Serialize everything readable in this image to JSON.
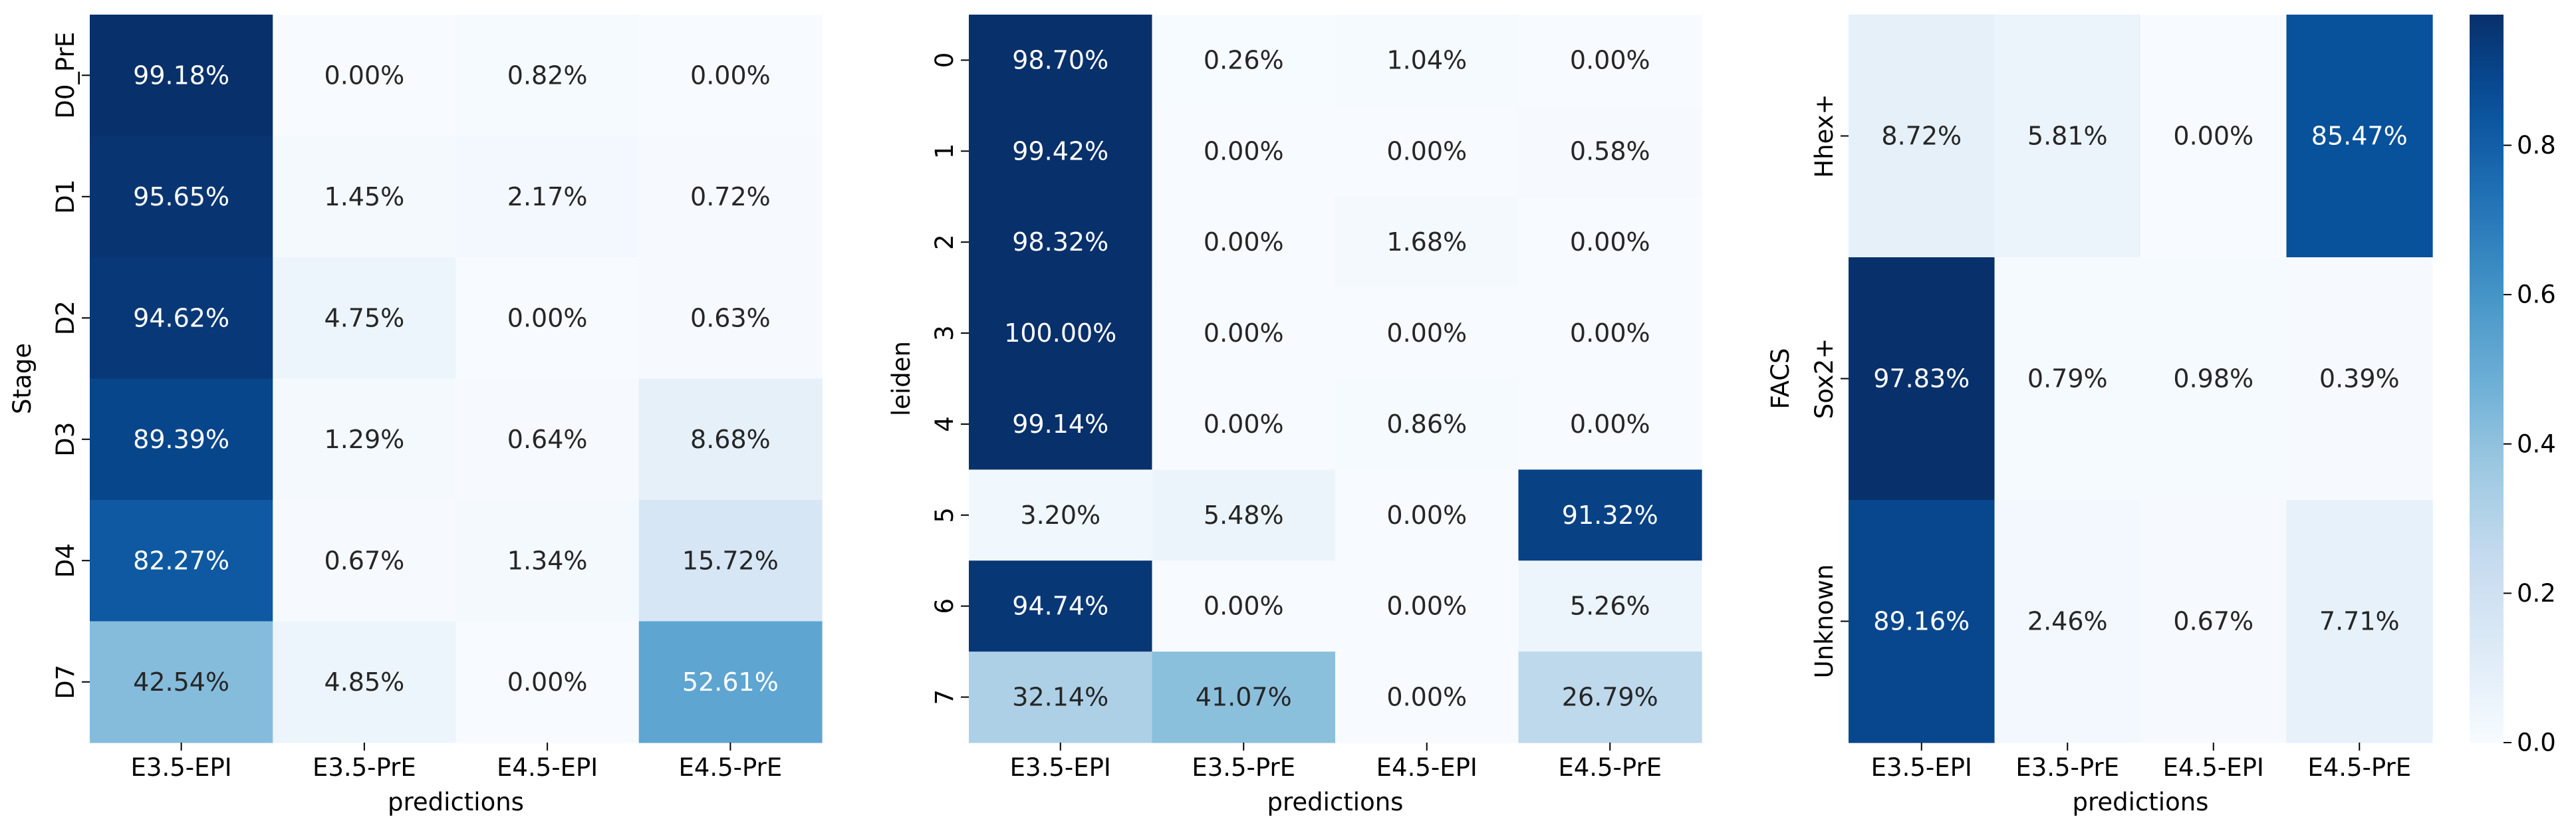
{
  "colorbar": {
    "ticks": [
      "0.0",
      "0.2",
      "0.4",
      "0.6",
      "0.8"
    ],
    "tick_values": [
      0,
      0.2,
      0.4,
      0.6,
      0.8
    ],
    "range": [
      0,
      0.975
    ]
  },
  "chart_data": [
    {
      "type": "heatmap",
      "title": "",
      "xlabel": "predictions",
      "ylabel": "Stage",
      "x_categories": [
        "E3.5-EPI",
        "E3.5-PrE",
        "E4.5-EPI",
        "E4.5-PrE"
      ],
      "y_categories": [
        "D0_PrE",
        "D1",
        "D2",
        "D3",
        "D4",
        "D7"
      ],
      "values": [
        [
          0.9918,
          0.0,
          0.0082,
          0.0
        ],
        [
          0.9565,
          0.0145,
          0.0217,
          0.0072
        ],
        [
          0.9462,
          0.0475,
          0.0,
          0.0063
        ],
        [
          0.8939,
          0.0129,
          0.0064,
          0.0868
        ],
        [
          0.8227,
          0.0067,
          0.0134,
          0.1572
        ],
        [
          0.4254,
          0.0485,
          0.0,
          0.5261
        ]
      ],
      "labels": [
        [
          "99.18%",
          "0.00%",
          "0.82%",
          "0.00%"
        ],
        [
          "95.65%",
          "1.45%",
          "2.17%",
          "0.72%"
        ],
        [
          "94.62%",
          "4.75%",
          "0.00%",
          "0.63%"
        ],
        [
          "89.39%",
          "1.29%",
          "0.64%",
          "8.68%"
        ],
        [
          "82.27%",
          "0.67%",
          "1.34%",
          "15.72%"
        ],
        [
          "42.54%",
          "4.85%",
          "0.00%",
          "52.61%"
        ]
      ],
      "colormap": "Blues"
    },
    {
      "type": "heatmap",
      "title": "",
      "xlabel": "predictions",
      "ylabel": "leiden",
      "x_categories": [
        "E3.5-EPI",
        "E3.5-PrE",
        "E4.5-EPI",
        "E4.5-PrE"
      ],
      "y_categories": [
        "0",
        "1",
        "2",
        "3",
        "4",
        "5",
        "6",
        "7"
      ],
      "values": [
        [
          0.987,
          0.0026,
          0.0104,
          0.0
        ],
        [
          0.9942,
          0.0,
          0.0,
          0.0058
        ],
        [
          0.9832,
          0.0,
          0.0168,
          0.0
        ],
        [
          1.0,
          0.0,
          0.0,
          0.0
        ],
        [
          0.9914,
          0.0,
          0.0086,
          0.0
        ],
        [
          0.032,
          0.0548,
          0.0,
          0.9132
        ],
        [
          0.9474,
          0.0,
          0.0,
          0.0526
        ],
        [
          0.3214,
          0.4107,
          0.0,
          0.2679
        ]
      ],
      "labels": [
        [
          "98.70%",
          "0.26%",
          "1.04%",
          "0.00%"
        ],
        [
          "99.42%",
          "0.00%",
          "0.00%",
          "0.58%"
        ],
        [
          "98.32%",
          "0.00%",
          "1.68%",
          "0.00%"
        ],
        [
          "100.00%",
          "0.00%",
          "0.00%",
          "0.00%"
        ],
        [
          "99.14%",
          "0.00%",
          "0.86%",
          "0.00%"
        ],
        [
          "3.20%",
          "5.48%",
          "0.00%",
          "91.32%"
        ],
        [
          "94.74%",
          "0.00%",
          "0.00%",
          "5.26%"
        ],
        [
          "32.14%",
          "41.07%",
          "0.00%",
          "26.79%"
        ]
      ],
      "colormap": "Blues"
    },
    {
      "type": "heatmap",
      "title": "",
      "xlabel": "predictions",
      "ylabel": "FACS",
      "x_categories": [
        "E3.5-EPI",
        "E3.5-PrE",
        "E4.5-EPI",
        "E4.5-PrE"
      ],
      "y_categories": [
        "Hhex+",
        "Sox2+",
        "Unknown"
      ],
      "values": [
        [
          0.0872,
          0.0581,
          0.0,
          0.8547
        ],
        [
          0.9783,
          0.0079,
          0.0098,
          0.0039
        ],
        [
          0.8916,
          0.0246,
          0.0067,
          0.0771
        ]
      ],
      "labels": [
        [
          "8.72%",
          "5.81%",
          "0.00%",
          "85.47%"
        ],
        [
          "97.83%",
          "0.79%",
          "0.98%",
          "0.39%"
        ],
        [
          "89.16%",
          "2.46%",
          "0.67%",
          "7.71%"
        ]
      ],
      "colormap": "Blues"
    }
  ]
}
